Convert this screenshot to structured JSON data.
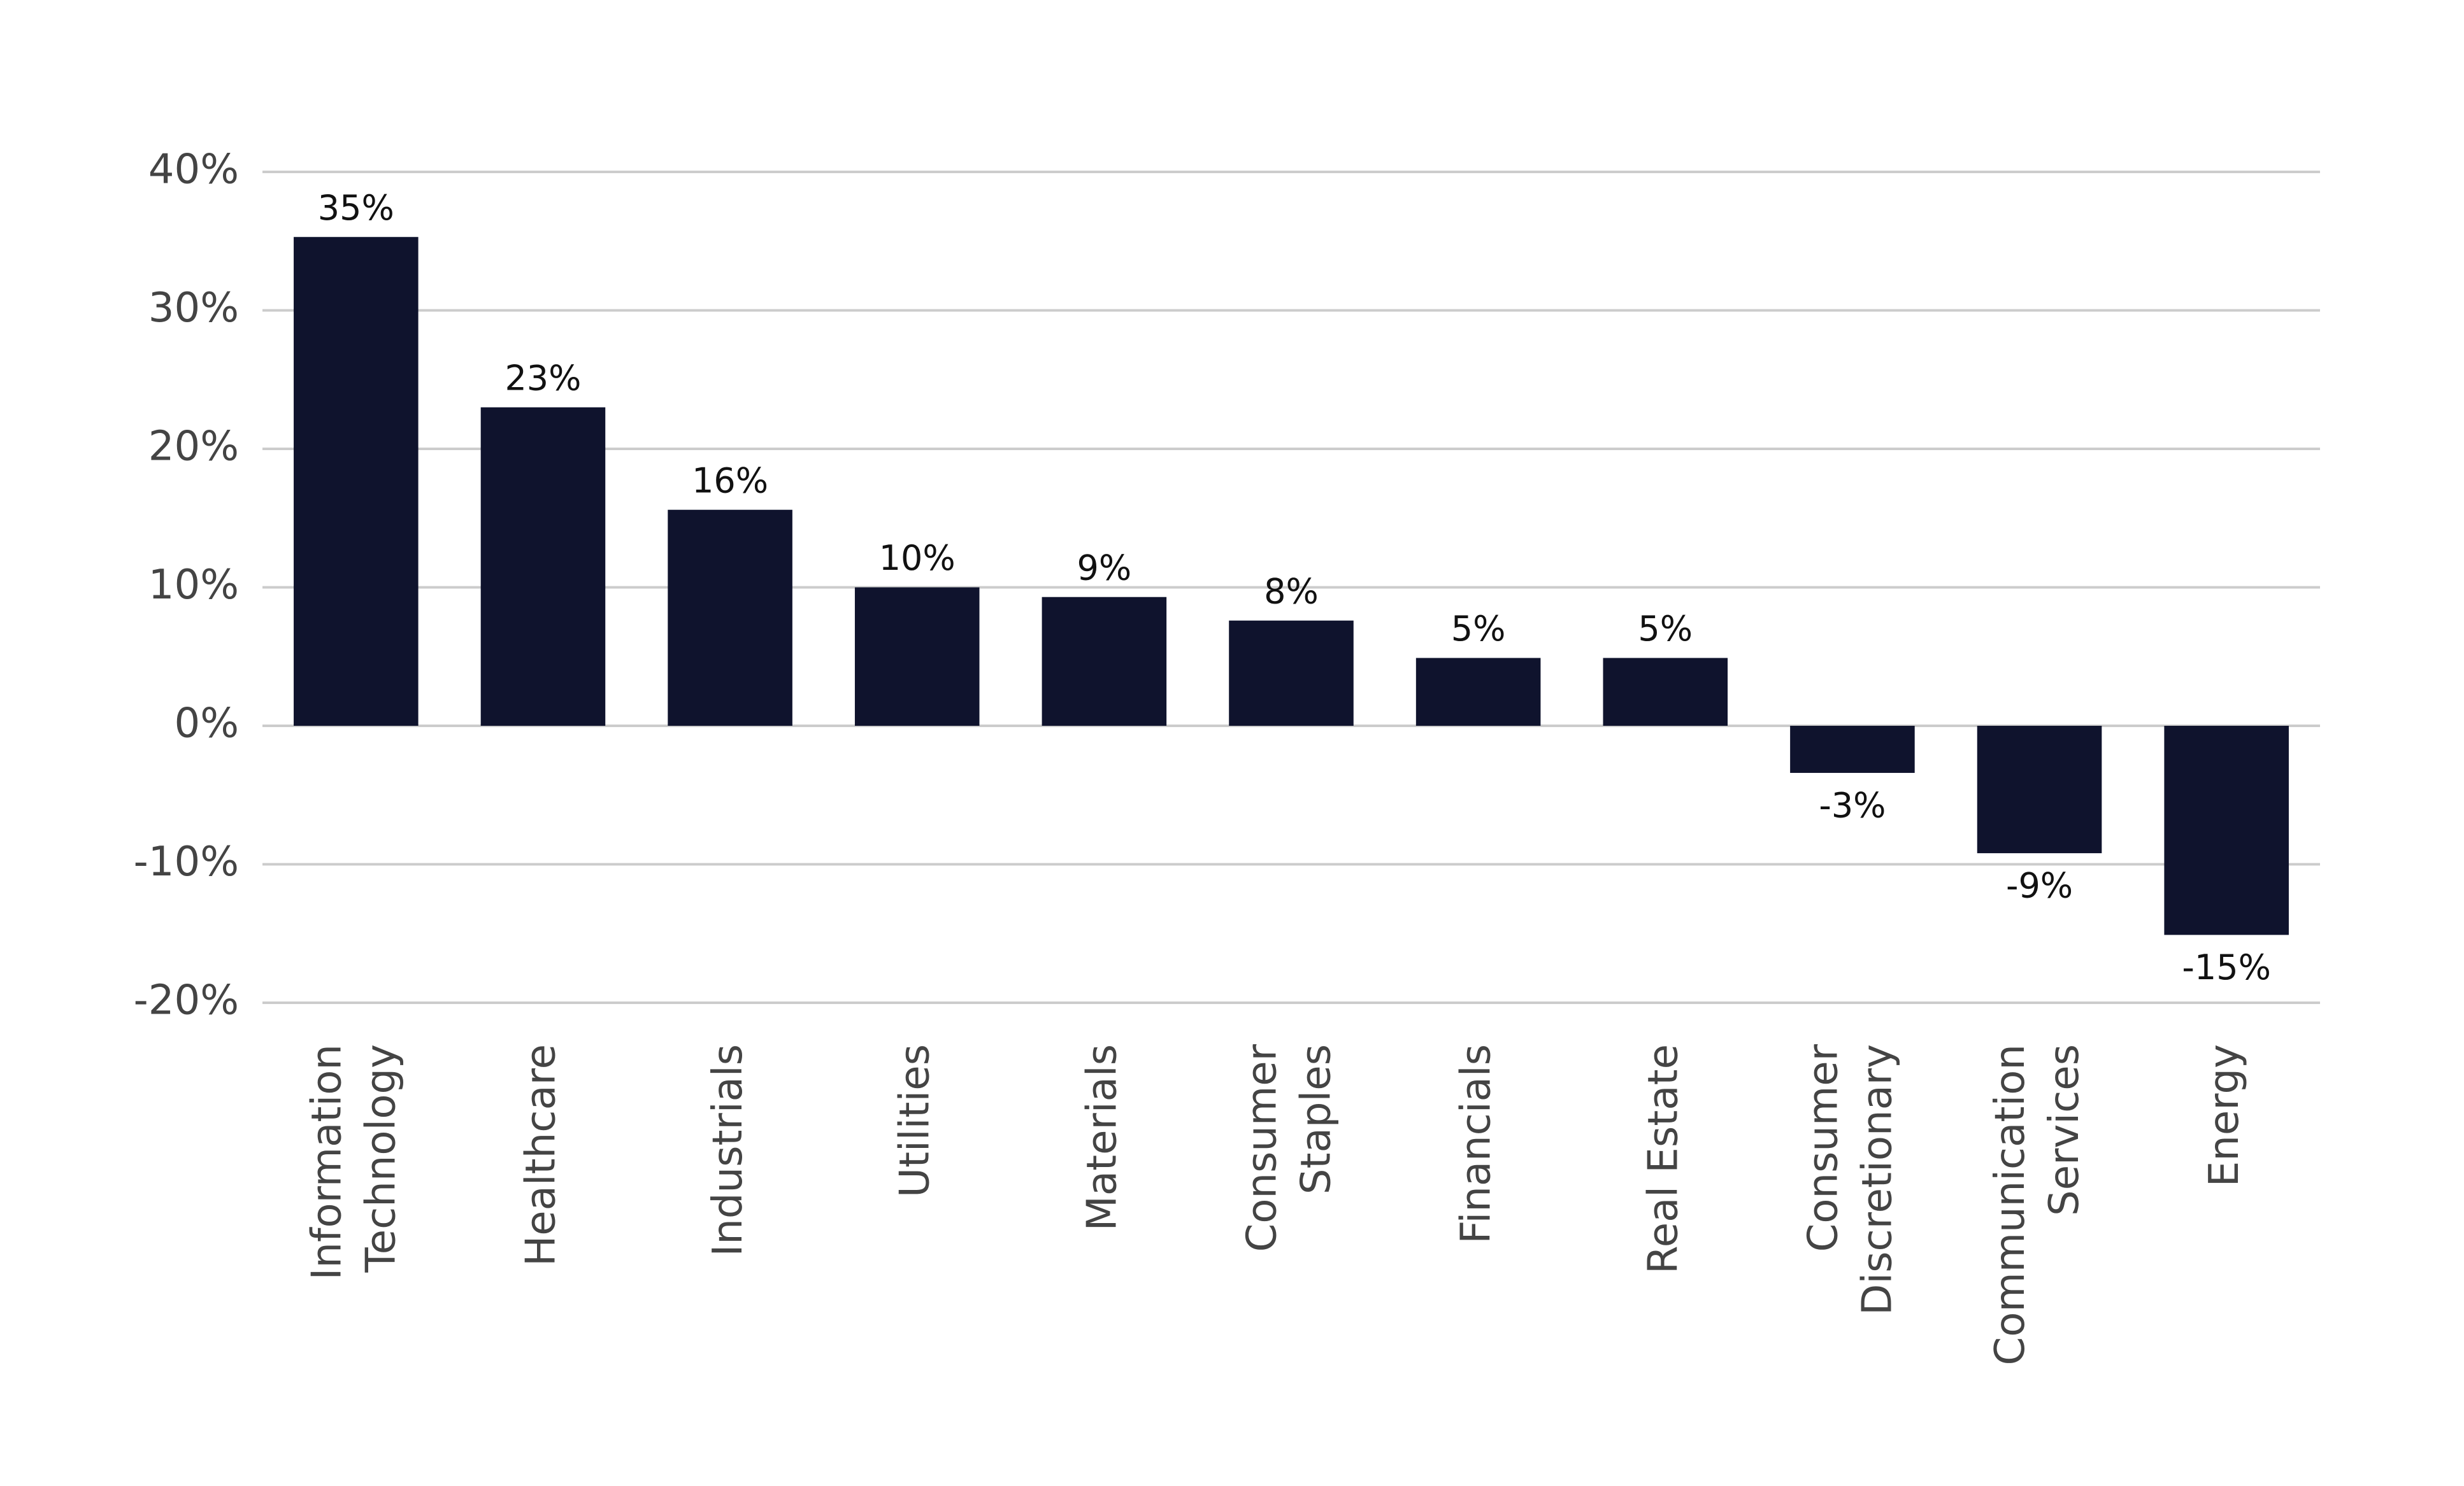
{
  "chart_data": {
    "type": "bar",
    "categories": [
      "Information\nTechnology",
      "Healthcare",
      "Industrials",
      "Utilities",
      "Materials",
      "Consumer\nStaples",
      "Financials",
      "Real Estate",
      "Consumer\nDiscretionary",
      "Communication\nServices",
      "Energy"
    ],
    "values": [
      35.3,
      23.0,
      15.6,
      10.0,
      9.3,
      7.6,
      4.9,
      4.9,
      -3.4,
      -9.2,
      -15.1
    ],
    "value_labels": [
      "35%",
      "23%",
      "16%",
      "10%",
      "9%",
      "8%",
      "5%",
      "5%",
      "-3%",
      "-9%",
      "-15%"
    ],
    "color": "#0f132d",
    "ylim": [
      -20,
      40
    ],
    "yticks": [
      {
        "value": -20,
        "label": "-20%"
      },
      {
        "value": -10,
        "label": "-10%"
      },
      {
        "value": 0,
        "label": "0%"
      },
      {
        "value": 10,
        "label": "10%"
      },
      {
        "value": 20,
        "label": "20%"
      },
      {
        "value": 30,
        "label": "30%"
      },
      {
        "value": 40,
        "label": "40%"
      }
    ],
    "grid": true
  }
}
